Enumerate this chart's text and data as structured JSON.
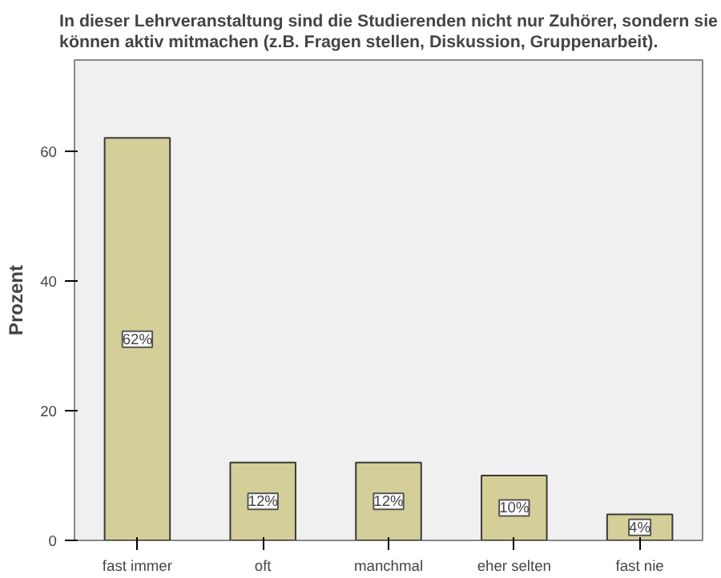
{
  "chart_data": {
    "type": "bar",
    "title": "In dieser Lehrveranstaltung sind die Studierenden nicht nur Zuhörer, sondern sie\nkönnen aktiv mitmachen (z.B. Fragen stellen, Diskussion, Gruppenarbeit).",
    "ylabel": "Prozent",
    "categories": [
      "fast immer",
      "oft",
      "manchmal",
      "eher selten",
      "fast nie"
    ],
    "values": [
      62,
      12,
      12,
      10,
      4
    ],
    "value_labels": [
      "62%",
      "12%",
      "12%",
      "10%",
      "4%"
    ],
    "color": "#d4cf98",
    "ylim": [
      0,
      74
    ],
    "yticks": [
      0,
      20,
      40,
      60
    ],
    "grid": false
  }
}
